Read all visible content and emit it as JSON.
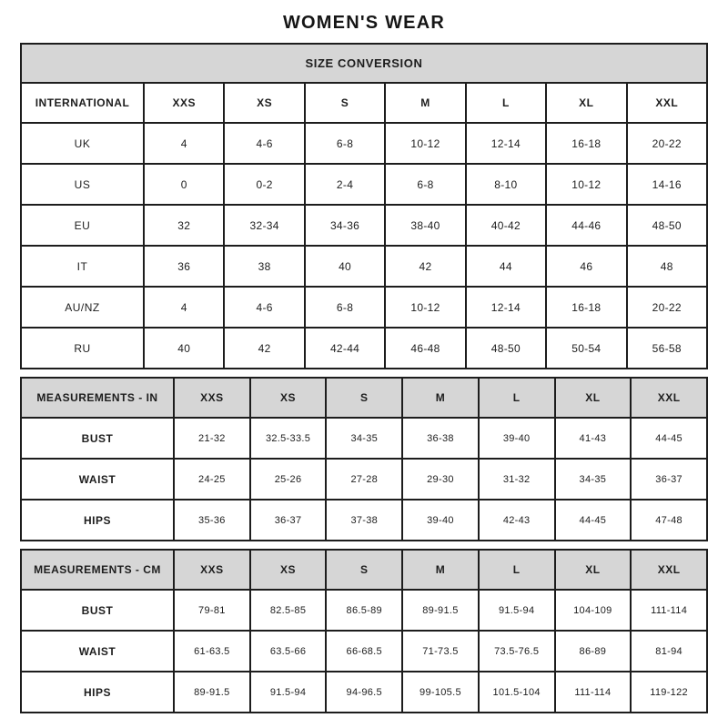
{
  "page": {
    "title": "WOMEN'S WEAR"
  },
  "colors": {
    "header_fill": "#d6d6d6",
    "border": "#1d1d1d",
    "background": "#ffffff",
    "text": "#1d1d1d"
  },
  "tables": {
    "size_conversion": {
      "banner": "SIZE CONVERSION",
      "header_shaded": false,
      "header": [
        "INTERNATIONAL",
        "XXS",
        "XS",
        "S",
        "M",
        "L",
        "XL",
        "XXL"
      ],
      "rows": [
        {
          "label": "UK",
          "values": [
            "4",
            "4-6",
            "6-8",
            "10-12",
            "12-14",
            "16-18",
            "20-22"
          ]
        },
        {
          "label": "US",
          "values": [
            "0",
            "0-2",
            "2-4",
            "6-8",
            "8-10",
            "10-12",
            "14-16"
          ]
        },
        {
          "label": "EU",
          "values": [
            "32",
            "32-34",
            "34-36",
            "38-40",
            "40-42",
            "44-46",
            "48-50"
          ]
        },
        {
          "label": "IT",
          "values": [
            "36",
            "38",
            "40",
            "42",
            "44",
            "46",
            "48"
          ]
        },
        {
          "label": "AU/NZ",
          "values": [
            "4",
            "4-6",
            "6-8",
            "10-12",
            "12-14",
            "16-18",
            "20-22"
          ]
        },
        {
          "label": "RU",
          "values": [
            "40",
            "42",
            "42-44",
            "46-48",
            "48-50",
            "50-54",
            "56-58"
          ]
        }
      ]
    },
    "measurements_in": {
      "banner": null,
      "header_shaded": true,
      "header": [
        "MEASUREMENTS - IN",
        "XXS",
        "XS",
        "S",
        "M",
        "L",
        "XL",
        "XXL"
      ],
      "rows": [
        {
          "label": "BUST",
          "values": [
            "21-32",
            "32.5-33.5",
            "34-35",
            "36-38",
            "39-40",
            "41-43",
            "44-45"
          ]
        },
        {
          "label": "WAIST",
          "values": [
            "24-25",
            "25-26",
            "27-28",
            "29-30",
            "31-32",
            "34-35",
            "36-37"
          ]
        },
        {
          "label": "HIPS",
          "values": [
            "35-36",
            "36-37",
            "37-38",
            "39-40",
            "42-43",
            "44-45",
            "47-48"
          ]
        }
      ]
    },
    "measurements_cm": {
      "banner": null,
      "header_shaded": true,
      "header": [
        "MEASUREMENTS - CM",
        "XXS",
        "XS",
        "S",
        "M",
        "L",
        "XL",
        "XXL"
      ],
      "rows": [
        {
          "label": "BUST",
          "values": [
            "79-81",
            "82.5-85",
            "86.5-89",
            "89-91.5",
            "91.5-94",
            "104-109",
            "111-114"
          ]
        },
        {
          "label": "WAIST",
          "values": [
            "61-63.5",
            "63.5-66",
            "66-68.5",
            "71-73.5",
            "73.5-76.5",
            "86-89",
            "81-94"
          ]
        },
        {
          "label": "HIPS",
          "values": [
            "89-91.5",
            "91.5-94",
            "94-96.5",
            "99-105.5",
            "101.5-104",
            "111-114",
            "119-122"
          ]
        }
      ]
    }
  }
}
